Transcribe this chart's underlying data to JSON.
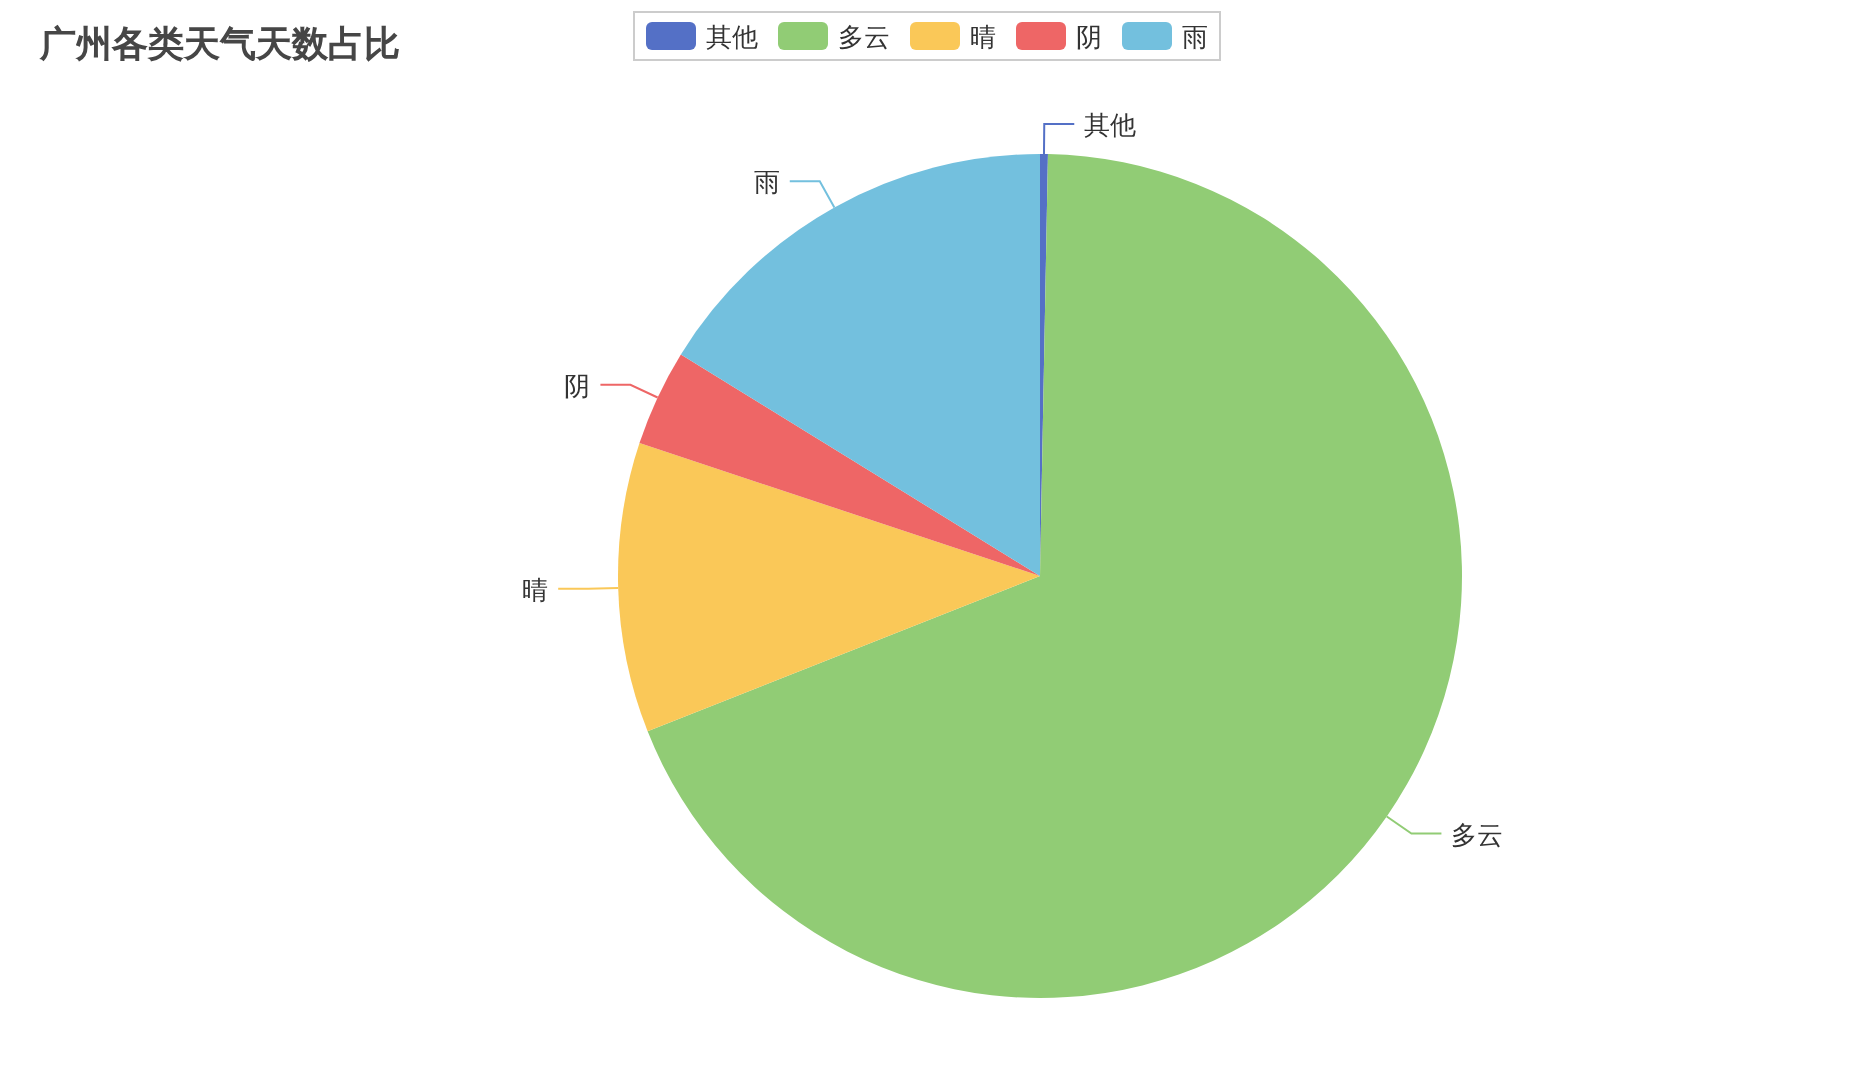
{
  "chart_data": {
    "type": "pie",
    "title": "广州各类天气天数占比",
    "categories": [
      "其他",
      "多云",
      "晴",
      "阴",
      "雨"
    ],
    "values": [
      0.3,
      68.7,
      11.1,
      3.7,
      16.2
    ],
    "colors": [
      "#5470c6",
      "#91cc75",
      "#fac858",
      "#ee6666",
      "#73c0de"
    ],
    "legend": "top"
  }
}
